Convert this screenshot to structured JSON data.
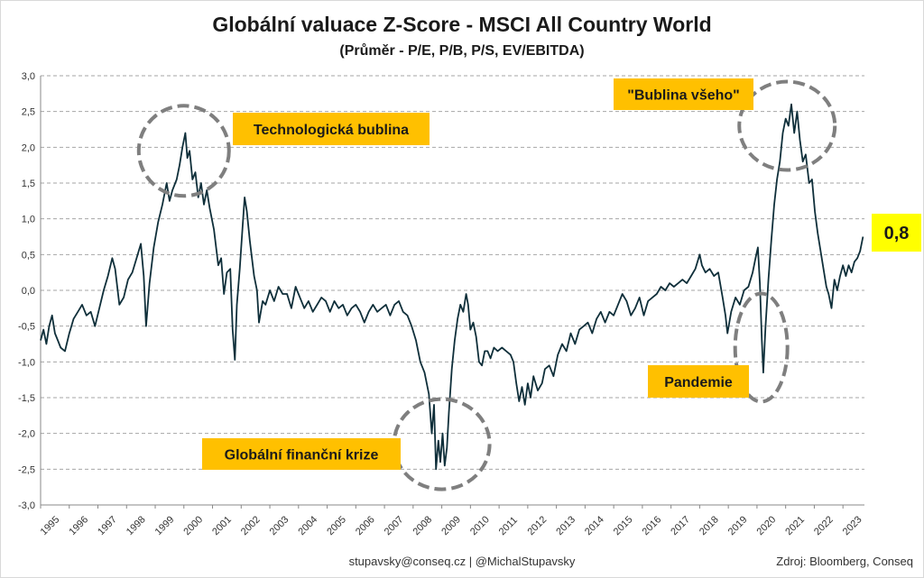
{
  "chart_data": {
    "type": "line",
    "title": "Globální valuace Z-Score - MSCI All Country World",
    "subtitle": "(Průměr - P/E, P/B, P/S, EV/EBITDA)",
    "ylim": [
      -3.0,
      3.0
    ],
    "xlim": [
      1995.0,
      2023.75
    ],
    "y_ticks": [
      "3,0",
      "2,5",
      "2,0",
      "1,5",
      "1,0",
      "0,5",
      "0,0",
      "-0,5",
      "-1,0",
      "-1,5",
      "-2,0",
      "-2,5",
      "-3,0"
    ],
    "x_ticks": [
      "1995",
      "1996",
      "1997",
      "1998",
      "1999",
      "2000",
      "2001",
      "2002",
      "2003",
      "2004",
      "2005",
      "2006",
      "2007",
      "2008",
      "2009",
      "2010",
      "2011",
      "2012",
      "2013",
      "2014",
      "2015",
      "2016",
      "2017",
      "2018",
      "2019",
      "2020",
      "2021",
      "2022",
      "2023"
    ],
    "grid": "horizontal-dashed",
    "line_color": "#0f2f3a",
    "series": [
      {
        "points": [
          [
            1995.0,
            -0.7
          ],
          [
            1995.1,
            -0.55
          ],
          [
            1995.2,
            -0.75
          ],
          [
            1995.3,
            -0.5
          ],
          [
            1995.4,
            -0.35
          ],
          [
            1995.5,
            -0.6
          ],
          [
            1995.6,
            -0.7
          ],
          [
            1995.7,
            -0.8
          ],
          [
            1995.85,
            -0.85
          ],
          [
            1996.0,
            -0.6
          ],
          [
            1996.15,
            -0.4
          ],
          [
            1996.3,
            -0.3
          ],
          [
            1996.45,
            -0.2
          ],
          [
            1996.6,
            -0.35
          ],
          [
            1996.75,
            -0.3
          ],
          [
            1996.9,
            -0.5
          ],
          [
            1997.05,
            -0.25
          ],
          [
            1997.2,
            0.0
          ],
          [
            1997.35,
            0.2
          ],
          [
            1997.5,
            0.45
          ],
          [
            1997.6,
            0.3
          ],
          [
            1997.75,
            -0.2
          ],
          [
            1997.9,
            -0.1
          ],
          [
            1998.05,
            0.15
          ],
          [
            1998.2,
            0.25
          ],
          [
            1998.35,
            0.45
          ],
          [
            1998.5,
            0.65
          ],
          [
            1998.6,
            0.2
          ],
          [
            1998.68,
            -0.5
          ],
          [
            1998.8,
            0.1
          ],
          [
            1998.95,
            0.6
          ],
          [
            1999.1,
            0.95
          ],
          [
            1999.25,
            1.2
          ],
          [
            1999.4,
            1.5
          ],
          [
            1999.5,
            1.25
          ],
          [
            1999.6,
            1.4
          ],
          [
            1999.75,
            1.55
          ],
          [
            1999.85,
            1.75
          ],
          [
            1999.95,
            2.0
          ],
          [
            2000.05,
            2.2
          ],
          [
            2000.12,
            1.85
          ],
          [
            2000.2,
            1.95
          ],
          [
            2000.3,
            1.55
          ],
          [
            2000.4,
            1.65
          ],
          [
            2000.5,
            1.3
          ],
          [
            2000.6,
            1.5
          ],
          [
            2000.7,
            1.2
          ],
          [
            2000.8,
            1.4
          ],
          [
            2000.9,
            1.15
          ],
          [
            2001.05,
            0.85
          ],
          [
            2001.2,
            0.35
          ],
          [
            2001.3,
            0.45
          ],
          [
            2001.4,
            -0.05
          ],
          [
            2001.5,
            0.25
          ],
          [
            2001.62,
            0.3
          ],
          [
            2001.7,
            -0.55
          ],
          [
            2001.78,
            -0.97
          ],
          [
            2001.85,
            -0.2
          ],
          [
            2001.95,
            0.3
          ],
          [
            2002.05,
            0.9
          ],
          [
            2002.12,
            1.3
          ],
          [
            2002.2,
            1.1
          ],
          [
            2002.3,
            0.7
          ],
          [
            2002.45,
            0.2
          ],
          [
            2002.55,
            0.0
          ],
          [
            2002.62,
            -0.45
          ],
          [
            2002.75,
            -0.15
          ],
          [
            2002.85,
            -0.2
          ],
          [
            2003.0,
            0.0
          ],
          [
            2003.15,
            -0.15
          ],
          [
            2003.3,
            0.05
          ],
          [
            2003.45,
            -0.05
          ],
          [
            2003.6,
            -0.05
          ],
          [
            2003.75,
            -0.25
          ],
          [
            2003.9,
            0.05
          ],
          [
            2004.05,
            -0.1
          ],
          [
            2004.2,
            -0.25
          ],
          [
            2004.35,
            -0.15
          ],
          [
            2004.5,
            -0.3
          ],
          [
            2004.65,
            -0.2
          ],
          [
            2004.8,
            -0.1
          ],
          [
            2004.95,
            -0.15
          ],
          [
            2005.1,
            -0.3
          ],
          [
            2005.25,
            -0.15
          ],
          [
            2005.4,
            -0.25
          ],
          [
            2005.55,
            -0.2
          ],
          [
            2005.7,
            -0.35
          ],
          [
            2005.85,
            -0.25
          ],
          [
            2006.0,
            -0.2
          ],
          [
            2006.15,
            -0.3
          ],
          [
            2006.3,
            -0.45
          ],
          [
            2006.45,
            -0.3
          ],
          [
            2006.6,
            -0.2
          ],
          [
            2006.75,
            -0.3
          ],
          [
            2006.9,
            -0.25
          ],
          [
            2007.05,
            -0.2
          ],
          [
            2007.2,
            -0.35
          ],
          [
            2007.35,
            -0.2
          ],
          [
            2007.5,
            -0.15
          ],
          [
            2007.65,
            -0.3
          ],
          [
            2007.8,
            -0.35
          ],
          [
            2007.95,
            -0.5
          ],
          [
            2008.1,
            -0.7
          ],
          [
            2008.25,
            -1.0
          ],
          [
            2008.4,
            -1.15
          ],
          [
            2008.55,
            -1.45
          ],
          [
            2008.65,
            -2.0
          ],
          [
            2008.73,
            -1.6
          ],
          [
            2008.8,
            -2.5
          ],
          [
            2008.88,
            -2.1
          ],
          [
            2008.95,
            -2.4
          ],
          [
            2009.03,
            -2.0
          ],
          [
            2009.1,
            -2.45
          ],
          [
            2009.18,
            -2.2
          ],
          [
            2009.25,
            -1.7
          ],
          [
            2009.35,
            -1.1
          ],
          [
            2009.45,
            -0.7
          ],
          [
            2009.55,
            -0.4
          ],
          [
            2009.65,
            -0.2
          ],
          [
            2009.75,
            -0.3
          ],
          [
            2009.85,
            -0.05
          ],
          [
            2009.92,
            -0.2
          ],
          [
            2010.0,
            -0.55
          ],
          [
            2010.1,
            -0.45
          ],
          [
            2010.2,
            -0.65
          ],
          [
            2010.3,
            -1.0
          ],
          [
            2010.4,
            -1.05
          ],
          [
            2010.5,
            -0.85
          ],
          [
            2010.6,
            -0.85
          ],
          [
            2010.7,
            -0.95
          ],
          [
            2010.82,
            -0.8
          ],
          [
            2010.95,
            -0.85
          ],
          [
            2011.1,
            -0.8
          ],
          [
            2011.25,
            -0.85
          ],
          [
            2011.4,
            -0.9
          ],
          [
            2011.5,
            -1.0
          ],
          [
            2011.6,
            -1.3
          ],
          [
            2011.7,
            -1.55
          ],
          [
            2011.8,
            -1.35
          ],
          [
            2011.9,
            -1.6
          ],
          [
            2012.0,
            -1.3
          ],
          [
            2012.1,
            -1.5
          ],
          [
            2012.2,
            -1.2
          ],
          [
            2012.35,
            -1.4
          ],
          [
            2012.5,
            -1.3
          ],
          [
            2012.6,
            -1.1
          ],
          [
            2012.75,
            -1.05
          ],
          [
            2012.9,
            -1.2
          ],
          [
            2013.05,
            -0.9
          ],
          [
            2013.2,
            -0.75
          ],
          [
            2013.35,
            -0.85
          ],
          [
            2013.5,
            -0.6
          ],
          [
            2013.65,
            -0.75
          ],
          [
            2013.8,
            -0.55
          ],
          [
            2013.95,
            -0.5
          ],
          [
            2014.1,
            -0.45
          ],
          [
            2014.25,
            -0.6
          ],
          [
            2014.4,
            -0.4
          ],
          [
            2014.55,
            -0.3
          ],
          [
            2014.7,
            -0.45
          ],
          [
            2014.85,
            -0.3
          ],
          [
            2015.0,
            -0.35
          ],
          [
            2015.15,
            -0.2
          ],
          [
            2015.3,
            -0.05
          ],
          [
            2015.45,
            -0.15
          ],
          [
            2015.6,
            -0.35
          ],
          [
            2015.75,
            -0.25
          ],
          [
            2015.9,
            -0.1
          ],
          [
            2016.05,
            -0.35
          ],
          [
            2016.2,
            -0.15
          ],
          [
            2016.35,
            -0.1
          ],
          [
            2016.5,
            -0.05
          ],
          [
            2016.65,
            0.05
          ],
          [
            2016.8,
            0.0
          ],
          [
            2016.95,
            0.1
          ],
          [
            2017.1,
            0.05
          ],
          [
            2017.25,
            0.1
          ],
          [
            2017.4,
            0.15
          ],
          [
            2017.55,
            0.1
          ],
          [
            2017.7,
            0.2
          ],
          [
            2017.85,
            0.3
          ],
          [
            2018.0,
            0.5
          ],
          [
            2018.08,
            0.35
          ],
          [
            2018.2,
            0.25
          ],
          [
            2018.35,
            0.3
          ],
          [
            2018.5,
            0.2
          ],
          [
            2018.65,
            0.25
          ],
          [
            2018.8,
            -0.1
          ],
          [
            2018.9,
            -0.35
          ],
          [
            2018.97,
            -0.6
          ],
          [
            2019.1,
            -0.3
          ],
          [
            2019.25,
            -0.1
          ],
          [
            2019.4,
            -0.2
          ],
          [
            2019.55,
            0.0
          ],
          [
            2019.7,
            0.05
          ],
          [
            2019.85,
            0.25
          ],
          [
            2019.95,
            0.45
          ],
          [
            2020.03,
            0.6
          ],
          [
            2020.1,
            0.1
          ],
          [
            2020.17,
            -0.7
          ],
          [
            2020.22,
            -1.15
          ],
          [
            2020.3,
            -0.5
          ],
          [
            2020.4,
            0.15
          ],
          [
            2020.5,
            0.7
          ],
          [
            2020.6,
            1.2
          ],
          [
            2020.7,
            1.55
          ],
          [
            2020.8,
            1.8
          ],
          [
            2020.9,
            2.2
          ],
          [
            2021.0,
            2.4
          ],
          [
            2021.1,
            2.3
          ],
          [
            2021.2,
            2.6
          ],
          [
            2021.3,
            2.2
          ],
          [
            2021.4,
            2.5
          ],
          [
            2021.5,
            2.1
          ],
          [
            2021.6,
            1.8
          ],
          [
            2021.7,
            1.9
          ],
          [
            2021.82,
            1.5
          ],
          [
            2021.92,
            1.55
          ],
          [
            2022.02,
            1.1
          ],
          [
            2022.12,
            0.8
          ],
          [
            2022.22,
            0.55
          ],
          [
            2022.32,
            0.3
          ],
          [
            2022.42,
            0.05
          ],
          [
            2022.5,
            -0.05
          ],
          [
            2022.6,
            -0.25
          ],
          [
            2022.7,
            0.15
          ],
          [
            2022.8,
            0.0
          ],
          [
            2022.9,
            0.2
          ],
          [
            2023.0,
            0.35
          ],
          [
            2023.1,
            0.2
          ],
          [
            2023.2,
            0.35
          ],
          [
            2023.3,
            0.25
          ],
          [
            2023.4,
            0.4
          ],
          [
            2023.5,
            0.45
          ],
          [
            2023.6,
            0.55
          ],
          [
            2023.7,
            0.75
          ]
        ]
      }
    ],
    "end_value_label": "0,8",
    "annotations": [
      {
        "text": "Technologická bublina",
        "cx": 2000.0,
        "cy": 1.95
      },
      {
        "text": "\"Bublina všeho\"",
        "cx": 2021.05,
        "cy": 2.3
      },
      {
        "text": "Globální finanční krize",
        "cx": 2009.0,
        "cy": -2.15
      },
      {
        "text": "Pandemie",
        "cx": 2020.15,
        "cy": -0.8
      }
    ]
  },
  "colors": {
    "callout_fill": "#ffc000",
    "end_label_fill": "#ffff00",
    "ellipse_stroke": "#7f7f7f",
    "grid": "#a6a6a6"
  },
  "footer": {
    "contact": "stupavsky@conseq.cz  |  @MichalStupavsky",
    "source": "Zdroj: Bloomberg, Conseq"
  }
}
